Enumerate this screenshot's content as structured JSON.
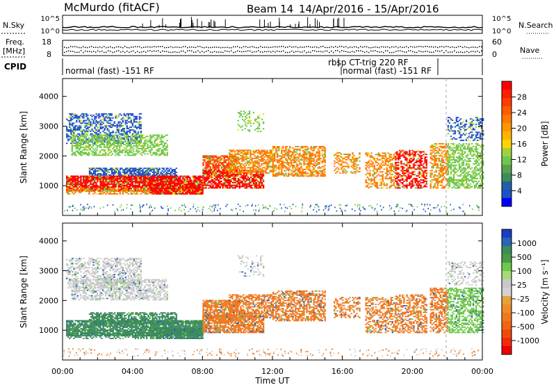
{
  "header": {
    "station": "McMurdo (fitACF)",
    "beam": "Beam 14",
    "date_range": "14/Apr/2016 - 15/Apr/2016"
  },
  "noise_panel": {
    "left_label": "N.Sky",
    "left_ticks": [
      "10^5",
      "10^0"
    ],
    "right_ticks": [
      "10^5",
      "10^0"
    ],
    "right_label": "N.Search"
  },
  "freq_panel": {
    "left_label_1": "Freq.",
    "left_label_2": "[MHz]",
    "left_ticks": [
      "18",
      "8"
    ],
    "right_ticks": [
      "60",
      "0"
    ],
    "right_label": "Nave"
  },
  "cpid_panel": {
    "label": "CPID",
    "segments": [
      "normal (fast) -151 RF",
      "rbsp CT-trig 220 RF",
      "normal (fast) -151 RF"
    ]
  },
  "chart_data": [
    {
      "type": "heatmap",
      "name": "power",
      "ylabel": "Slant Range [km]",
      "yticks": [
        1000,
        2000,
        3000,
        4000
      ],
      "ylim": [
        0,
        4600
      ],
      "xlim_hours": [
        0,
        24
      ],
      "colorbar": {
        "label": "Power [dB]",
        "ticks": [
          "4",
          "8",
          "12",
          "16",
          "20",
          "24",
          "28"
        ],
        "colors": [
          "#0000ff",
          "#1e50c8",
          "#2060a8",
          "#3c8c5a",
          "#5aa050",
          "#6ec84a",
          "#a0d040",
          "#ffd400",
          "#ffb400",
          "#ff9600",
          "#ff7800",
          "#ff5a00",
          "#ff3c00",
          "#ff1e00",
          "#ff0000"
        ]
      }
    },
    {
      "type": "heatmap",
      "name": "velocity",
      "ylabel": "Slant Range [km]",
      "yticks": [
        1000,
        2000,
        3000,
        4000
      ],
      "ylim": [
        0,
        4600
      ],
      "xlim_hours": [
        0,
        24
      ],
      "xlabel": "Time UT",
      "xticks": [
        "00:00",
        "04:00",
        "08:00",
        "12:00",
        "16:00",
        "20:00",
        "00:00"
      ],
      "colorbar": {
        "label": "Velocity [m s⁻¹]",
        "ticks": [
          "1000",
          "500",
          "100",
          "25",
          "-25",
          "-100",
          "-500",
          "-1000"
        ],
        "colors": [
          "#1e3cc8",
          "#2a64b4",
          "#3c8c5a",
          "#4a9a4a",
          "#6ec84a",
          "#a8d87a",
          "#c8c8c8",
          "#d2d2d2",
          "#e6a03c",
          "#f08c28",
          "#f07820",
          "#f06414",
          "#f04a0a",
          "#f02a0a",
          "#f00000"
        ]
      }
    }
  ],
  "colors": {
    "frame": "#000000",
    "grey_data": "#c8c8c8",
    "green_data": "#3c8c5a",
    "orange_data": "#f08020",
    "red_data": "#ff2000",
    "blue_data": "#2050c0"
  }
}
